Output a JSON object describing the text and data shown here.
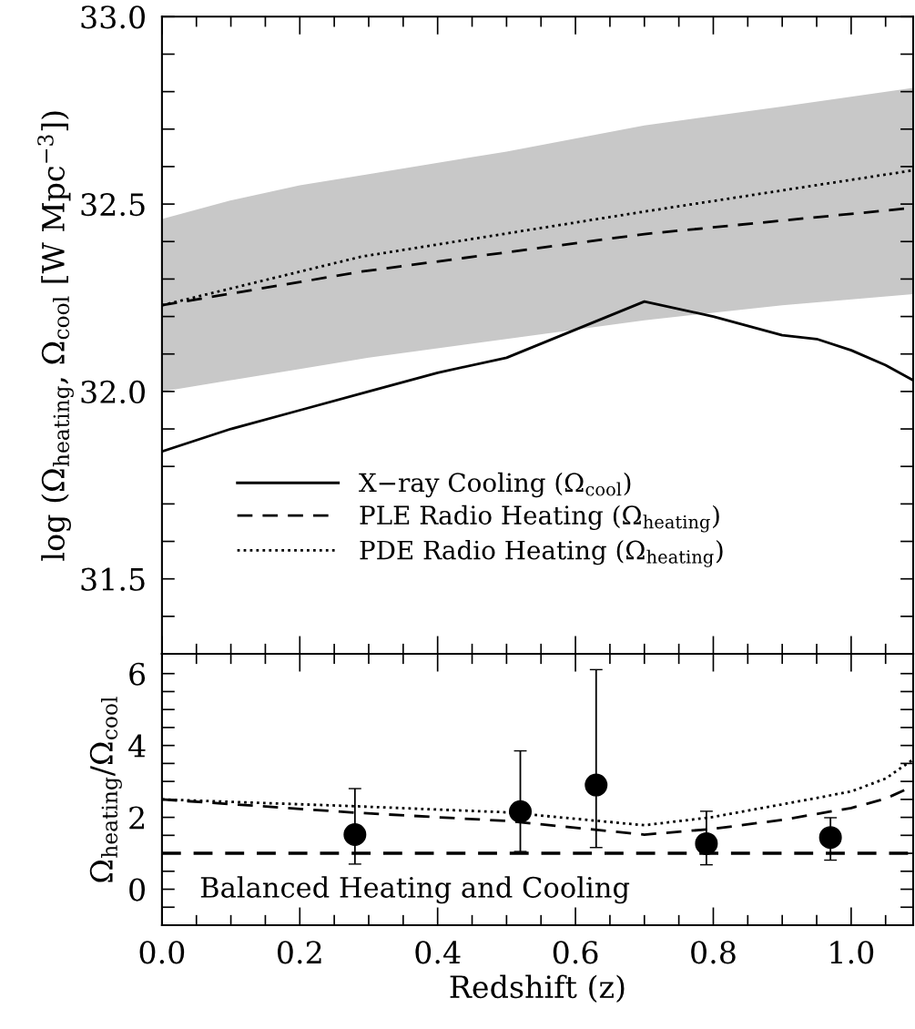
{
  "chart_data": [
    {
      "type": "line",
      "ylabel": "log (Ω$_{heating}$, Ω$_{cool}$ [W Mpc$^{−3}$])",
      "xlim": [
        0,
        1.09
      ],
      "ylim": [
        31.3,
        33.0
      ],
      "xticks": [
        {
          "value": 0,
          "label": null
        },
        {
          "value": 0.05,
          "label": null
        },
        {
          "value": 0.1,
          "label": null
        },
        {
          "value": 0.15,
          "label": null
        },
        {
          "value": 0.2,
          "label": null
        },
        {
          "value": 0.25,
          "label": null
        },
        {
          "value": 0.3,
          "label": null
        },
        {
          "value": 0.35,
          "label": null
        },
        {
          "value": 0.4,
          "label": null
        },
        {
          "value": 0.45,
          "label": null
        },
        {
          "value": 0.5,
          "label": null
        },
        {
          "value": 0.55,
          "label": null
        },
        {
          "value": 0.6,
          "label": null
        },
        {
          "value": 0.65,
          "label": null
        },
        {
          "value": 0.7,
          "label": null
        },
        {
          "value": 0.75,
          "label": null
        },
        {
          "value": 0.8,
          "label": null
        },
        {
          "value": 0.85,
          "label": null
        },
        {
          "value": 0.9,
          "label": null
        },
        {
          "value": 0.95,
          "label": null
        },
        {
          "value": 1.0,
          "label": null
        },
        {
          "value": 1.05,
          "label": null
        }
      ],
      "yticks": [
        {
          "value": 31.4,
          "label": null
        },
        {
          "value": 31.5,
          "label": "31.5"
        },
        {
          "value": 31.6,
          "label": null
        },
        {
          "value": 31.7,
          "label": null
        },
        {
          "value": 31.8,
          "label": null
        },
        {
          "value": 31.9,
          "label": null
        },
        {
          "value": 32.0,
          "label": "32.0"
        },
        {
          "value": 32.1,
          "label": null
        },
        {
          "value": 32.2,
          "label": null
        },
        {
          "value": 32.3,
          "label": null
        },
        {
          "value": 32.4,
          "label": null
        },
        {
          "value": 32.5,
          "label": "32.5"
        },
        {
          "value": 32.6,
          "label": null
        },
        {
          "value": 32.7,
          "label": null
        },
        {
          "value": 32.8,
          "label": null
        },
        {
          "value": 32.9,
          "label": null
        },
        {
          "value": 33.0,
          "label": "33.0"
        }
      ],
      "tick_labels": "y",
      "grid": false,
      "legend": "bottom left",
      "series": [
        {
          "type": "area",
          "color": "#c8c8c8",
          "x": [
            0,
            0.1,
            0.2,
            0.3,
            0.5,
            0.7,
            0.9,
            1.09
          ],
          "values": [
            null,
            null,
            null,
            null,
            null,
            null,
            null,
            null
          ],
          "lower": [
            32.0,
            32.03,
            32.06,
            32.09,
            32.14,
            32.19,
            32.23,
            32.26
          ],
          "upper": [
            32.46,
            32.51,
            32.55,
            32.58,
            32.64,
            32.71,
            32.76,
            32.81
          ]
        },
        {
          "name": "X−ray Cooling (Ω$_{cool}$)",
          "color": "#000000",
          "line_style": "solid",
          "x": [
            0,
            0.1,
            0.2,
            0.3,
            0.4,
            0.5,
            0.7,
            0.8,
            0.9,
            0.95,
            1.0,
            1.05,
            1.09
          ],
          "values": [
            31.84,
            31.9,
            31.95,
            32.0,
            32.05,
            32.09,
            32.24,
            32.2,
            32.15,
            32.14,
            32.11,
            32.07,
            32.03
          ]
        },
        {
          "name": "PLE Radio Heating (Ω$_{heating}$)",
          "color": "#000000",
          "line_style": "dashed",
          "x": [
            0,
            0.29,
            0.7,
            1.09
          ],
          "values": [
            32.23,
            32.32,
            32.42,
            32.49
          ]
        },
        {
          "name": "PDE Radio Heating (Ω$_{heating}$)",
          "color": "#000000",
          "line_style": "dotted",
          "x": [
            0,
            0.29,
            0.7,
            1.09
          ],
          "values": [
            32.23,
            32.36,
            32.48,
            32.59
          ]
        }
      ]
    },
    {
      "type": "line",
      "xlabel": "Redshift (z)",
      "ylabel": "Ω$_{heating}$/Ω$_{cool}$",
      "xlim": [
        0,
        1.09
      ],
      "ylim": [
        -1,
        6.55
      ],
      "xticks": [
        {
          "value": 0,
          "label": "0.0"
        },
        {
          "value": 0.05,
          "label": null
        },
        {
          "value": 0.1,
          "label": null
        },
        {
          "value": 0.15,
          "label": null
        },
        {
          "value": 0.2,
          "label": "0.2"
        },
        {
          "value": 0.25,
          "label": null
        },
        {
          "value": 0.3,
          "label": null
        },
        {
          "value": 0.35,
          "label": null
        },
        {
          "value": 0.4,
          "label": "0.4"
        },
        {
          "value": 0.45,
          "label": null
        },
        {
          "value": 0.5,
          "label": null
        },
        {
          "value": 0.55,
          "label": null
        },
        {
          "value": 0.6,
          "label": "0.6"
        },
        {
          "value": 0.65,
          "label": null
        },
        {
          "value": 0.7,
          "label": null
        },
        {
          "value": 0.75,
          "label": null
        },
        {
          "value": 0.8,
          "label": "0.8"
        },
        {
          "value": 0.85,
          "label": null
        },
        {
          "value": 0.9,
          "label": null
        },
        {
          "value": 0.95,
          "label": null
        },
        {
          "value": 1.0,
          "label": "1.0"
        },
        {
          "value": 1.05,
          "label": null
        }
      ],
      "yticks": [
        {
          "value": -0.5,
          "label": null
        },
        0,
        {
          "value": 0.5,
          "label": null
        },
        {
          "value": 1,
          "label": null
        },
        {
          "value": 1.5,
          "label": null
        },
        2,
        {
          "value": 2.5,
          "label": null
        },
        {
          "value": 3,
          "label": null
        },
        {
          "value": 3.5,
          "label": null
        },
        4,
        {
          "value": 4.5,
          "label": null
        },
        {
          "value": 5,
          "label": null
        },
        {
          "value": 5.5,
          "label": null
        },
        6
      ],
      "grid": false,
      "ref_lines": [
        {
          "axis": "y",
          "value": 1,
          "line_style": "dashed",
          "color": "#000000"
        }
      ],
      "annotations": [
        "Balanced Heating and Cooling"
      ],
      "series": [
        {
          "color": "#000000",
          "line_style": "dashed",
          "x": [
            0,
            0.28,
            0.5,
            0.7,
            0.8,
            0.9,
            1.0,
            1.05,
            1.09
          ],
          "values": [
            2.5,
            2.13,
            1.9,
            1.52,
            1.68,
            1.93,
            2.26,
            2.52,
            2.87
          ]
        },
        {
          "color": "#000000",
          "line_style": "dotted",
          "x": [
            0,
            0.28,
            0.5,
            0.7,
            0.8,
            0.9,
            1.0,
            1.05,
            1.09
          ],
          "values": [
            2.5,
            2.31,
            2.14,
            1.78,
            2.01,
            2.36,
            2.72,
            3.08,
            3.61
          ]
        },
        {
          "type": "scatter",
          "color": "#000000",
          "marker": "circle",
          "x": [
            0.28,
            0.52,
            0.63,
            0.79,
            0.97
          ],
          "values": [
            1.52,
            2.16,
            2.9,
            1.27,
            1.44
          ],
          "errors": [
            [
              0.7,
              2.8
            ],
            [
              1.05,
              3.85
            ],
            [
              1.16,
              6.11
            ],
            [
              0.68,
              2.17
            ],
            [
              0.81,
              1.99
            ]
          ]
        }
      ]
    }
  ]
}
